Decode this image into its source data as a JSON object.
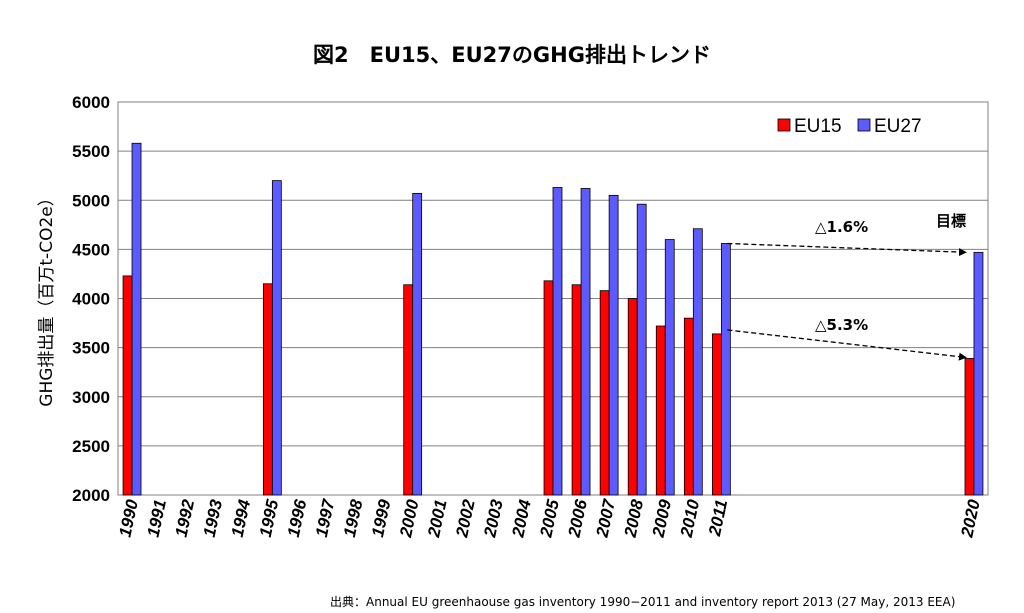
{
  "chart_data": {
    "type": "bar",
    "title": "図2　EU15、EU27のGHG排出トレンド",
    "ylabel": "GHG排出量（百万t-CO2e）",
    "xlabel": "",
    "ylim": [
      2000,
      6000
    ],
    "yticks": [
      2000,
      2500,
      3000,
      3500,
      4000,
      4500,
      5000,
      5500,
      6000
    ],
    "grid": true,
    "legend_position": "top-right",
    "categories": [
      "1990",
      "1991",
      "1992",
      "1993",
      "1994",
      "1995",
      "1996",
      "1997",
      "1998",
      "1999",
      "2000",
      "2001",
      "2002",
      "2003",
      "2004",
      "2005",
      "2006",
      "2007",
      "2008",
      "2009",
      "2010",
      "2011",
      "",
      "",
      "",
      "",
      "",
      "",
      "",
      "",
      "2020"
    ],
    "series": [
      {
        "name": "EU15",
        "color": "#ff0000",
        "values": [
          4230,
          null,
          null,
          null,
          null,
          4150,
          null,
          null,
          null,
          null,
          4140,
          null,
          null,
          null,
          null,
          4180,
          4140,
          4080,
          4000,
          3720,
          3800,
          3640,
          null,
          null,
          null,
          null,
          null,
          null,
          null,
          null,
          3390
        ]
      },
      {
        "name": "EU27",
        "color": "#5b5bff",
        "values": [
          5580,
          null,
          null,
          null,
          null,
          5200,
          null,
          null,
          null,
          null,
          5070,
          null,
          null,
          null,
          null,
          5130,
          5120,
          5050,
          4960,
          4600,
          4710,
          4560,
          null,
          null,
          null,
          null,
          null,
          null,
          null,
          null,
          4470
        ]
      }
    ],
    "annotations": [
      {
        "text": "△1.6%",
        "from_x": "2011",
        "from_y": 4560,
        "to_x": "2020",
        "to_y": 4470
      },
      {
        "text": "△5.3%",
        "from_x": "2011",
        "from_y": 3680,
        "to_x": "2020",
        "to_y": 3400
      },
      {
        "text": "目標"
      }
    ],
    "source": "出典：Annual EU greenhaouse gas inventory 1990−2011 and inventory report 2013 (27 May, 2013 EEA)"
  }
}
